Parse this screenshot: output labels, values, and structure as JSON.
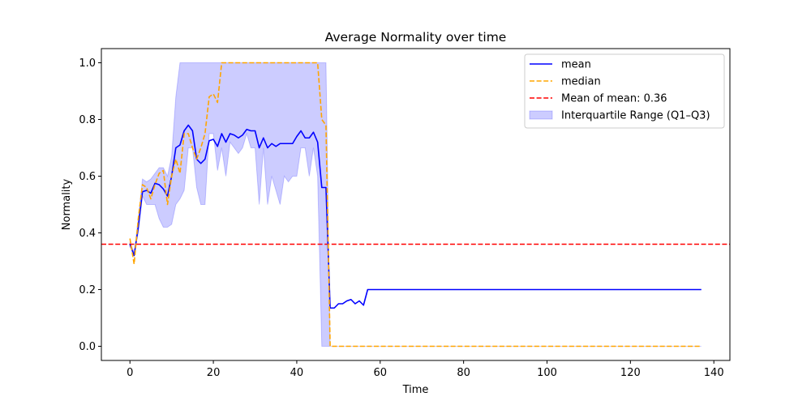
{
  "chart_data": {
    "type": "line",
    "title": "Average Normality over time",
    "xlabel": "Time",
    "ylabel": "Normality",
    "xlim": [
      -6.85,
      143.85
    ],
    "ylim": [
      -0.05,
      1.05
    ],
    "xticks": [
      0,
      20,
      40,
      60,
      80,
      100,
      120,
      140
    ],
    "yticks": [
      0.0,
      0.2,
      0.4,
      0.6,
      0.8,
      1.0
    ],
    "grid": false,
    "legend_position": "top-right",
    "reference_line": {
      "name": "Mean of mean: 0.36",
      "y": 0.36,
      "color": "#ff0000"
    },
    "series": [
      {
        "name": "mean",
        "color": "#0000ff",
        "style": "solid",
        "x": [
          0,
          1,
          2,
          3,
          4,
          5,
          6,
          7,
          8,
          9,
          10,
          11,
          12,
          13,
          14,
          15,
          16,
          17,
          18,
          19,
          20,
          21,
          22,
          23,
          24,
          25,
          26,
          27,
          28,
          29,
          30,
          31,
          32,
          33,
          34,
          35,
          36,
          37,
          38,
          39,
          40,
          41,
          42,
          43,
          44,
          45,
          46,
          47,
          48,
          49,
          50,
          51,
          52,
          53,
          54,
          55,
          56,
          57,
          137
        ],
        "y": [
          0.36,
          0.32,
          0.42,
          0.545,
          0.55,
          0.54,
          0.575,
          0.57,
          0.555,
          0.53,
          0.6,
          0.7,
          0.71,
          0.76,
          0.78,
          0.76,
          0.66,
          0.645,
          0.66,
          0.725,
          0.73,
          0.705,
          0.75,
          0.72,
          0.75,
          0.745,
          0.735,
          0.745,
          0.765,
          0.76,
          0.76,
          0.7,
          0.735,
          0.7,
          0.715,
          0.705,
          0.715,
          0.715,
          0.715,
          0.715,
          0.74,
          0.76,
          0.735,
          0.735,
          0.755,
          0.72,
          0.56,
          0.56,
          0.135,
          0.135,
          0.15,
          0.15,
          0.16,
          0.165,
          0.15,
          0.16,
          0.145,
          0.2,
          0.2
        ]
      },
      {
        "name": "median",
        "color": "#ffa500",
        "style": "dashed",
        "x": [
          0,
          1,
          2,
          3,
          4,
          5,
          6,
          7,
          8,
          9,
          10,
          11,
          12,
          13,
          14,
          15,
          16,
          17,
          18,
          19,
          20,
          21,
          22,
          23,
          24,
          25,
          26,
          27,
          28,
          29,
          30,
          31,
          32,
          33,
          34,
          35,
          36,
          37,
          38,
          39,
          40,
          41,
          42,
          43,
          44,
          45,
          46,
          47,
          48,
          137
        ],
        "y": [
          0.38,
          0.29,
          0.45,
          0.57,
          0.56,
          0.52,
          0.57,
          0.61,
          0.62,
          0.5,
          0.6,
          0.66,
          0.61,
          0.75,
          0.75,
          0.7,
          0.66,
          0.7,
          0.75,
          0.88,
          0.89,
          0.86,
          1.0,
          1.0,
          1.0,
          1.0,
          1.0,
          1.0,
          1.0,
          1.0,
          1.0,
          1.0,
          1.0,
          1.0,
          1.0,
          1.0,
          1.0,
          1.0,
          1.0,
          1.0,
          1.0,
          1.0,
          1.0,
          1.0,
          1.0,
          1.0,
          0.8,
          0.78,
          0.0,
          0.0
        ]
      },
      {
        "name": "Interquartile Range (Q1–Q3)",
        "color": "#0000ff",
        "style": "fill",
        "opacity": 0.2,
        "x": [
          0,
          1,
          2,
          3,
          4,
          5,
          6,
          7,
          8,
          9,
          10,
          11,
          12,
          13,
          14,
          15,
          16,
          17,
          18,
          19,
          20,
          21,
          22,
          23,
          24,
          25,
          26,
          27,
          28,
          29,
          30,
          31,
          32,
          33,
          34,
          35,
          36,
          37,
          38,
          39,
          40,
          41,
          42,
          43,
          44,
          45,
          46,
          47,
          48,
          137
        ],
        "q1": [
          0.35,
          0.33,
          0.4,
          0.53,
          0.5,
          0.5,
          0.5,
          0.45,
          0.42,
          0.42,
          0.43,
          0.5,
          0.52,
          0.55,
          0.7,
          0.7,
          0.56,
          0.5,
          0.5,
          0.75,
          0.75,
          0.62,
          0.7,
          0.6,
          0.72,
          0.7,
          0.68,
          0.7,
          0.75,
          0.7,
          0.7,
          0.5,
          0.7,
          0.5,
          0.6,
          0.55,
          0.5,
          0.6,
          0.58,
          0.6,
          0.6,
          0.7,
          0.7,
          0.6,
          0.7,
          0.6,
          0.0,
          0.0,
          0.0,
          0.0
        ],
        "q3": [
          0.37,
          0.33,
          0.45,
          0.59,
          0.58,
          0.59,
          0.61,
          0.63,
          0.63,
          0.6,
          0.67,
          0.88,
          1.0,
          1.0,
          1.0,
          1.0,
          1.0,
          1.0,
          1.0,
          1.0,
          1.0,
          1.0,
          1.0,
          1.0,
          1.0,
          1.0,
          1.0,
          1.0,
          1.0,
          1.0,
          1.0,
          1.0,
          1.0,
          1.0,
          1.0,
          1.0,
          1.0,
          1.0,
          1.0,
          1.0,
          1.0,
          1.0,
          1.0,
          1.0,
          1.0,
          1.0,
          1.0,
          1.0,
          0.0,
          0.0
        ]
      }
    ],
    "legend": [
      {
        "label": "mean",
        "kind": "line",
        "color": "#0000ff",
        "style": "solid"
      },
      {
        "label": "median",
        "kind": "line",
        "color": "#ffa500",
        "style": "dashed"
      },
      {
        "label": "Mean of mean: 0.36",
        "kind": "line",
        "color": "#ff0000",
        "style": "dashed"
      },
      {
        "label": "Interquartile Range (Q1–Q3)",
        "kind": "patch",
        "color": "#0000ff",
        "style": "fill"
      }
    ]
  }
}
